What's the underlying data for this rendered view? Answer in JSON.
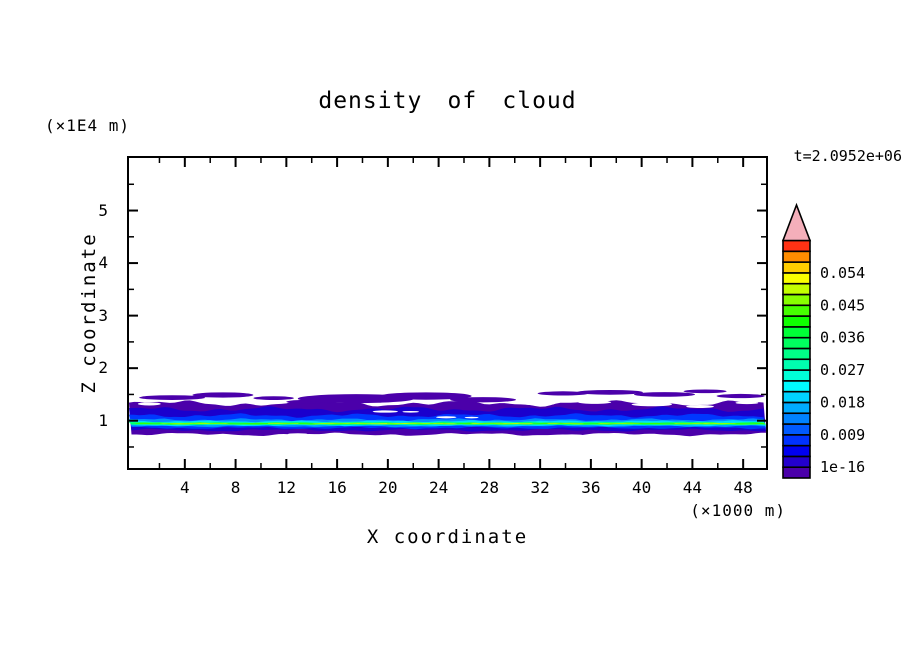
{
  "figure": {
    "title": "density of cloud",
    "time_label": "t=2.0952e+06",
    "x_axis_label": "X coordinate",
    "x_axis_unit": "(×1000 m)",
    "z_axis_label": "Z coordinate",
    "z_axis_unit": "(×1E4 m)"
  },
  "chart_data": {
    "type": "heatmap",
    "title": "density of cloud",
    "xlabel": "X coordinate (×1000 m)",
    "ylabel": "Z coordinate (×1E4 m)",
    "time_annotation": "t=2.0952e+06",
    "x_range": [
      -0.4,
      49.8
    ],
    "z_range": [
      0.1,
      6.0
    ],
    "x_major_ticks": [
      4,
      8,
      12,
      16,
      20,
      24,
      28,
      32,
      36,
      40,
      44,
      48
    ],
    "x_minor_ticks": [
      2,
      6,
      10,
      14,
      18,
      22,
      26,
      30,
      34,
      38,
      42,
      46
    ],
    "z_major_ticks": [
      1,
      2,
      3,
      4,
      5
    ],
    "z_minor_ticks": [
      0.5,
      1.5,
      2.5,
      3.5,
      4.5,
      5.5
    ],
    "grid": false,
    "legend_position": "right-colorbar",
    "colorbar": {
      "labels": [
        "1e-16",
        "0.009",
        "0.018",
        "0.027",
        "0.036",
        "0.045",
        "0.054"
      ],
      "label_boundary_index": [
        1,
        4,
        7,
        10,
        13,
        16,
        19
      ],
      "contour_interval": 0.003,
      "overflow_arrow_color": "#f4afba",
      "cell_colors_bottom_to_top": [
        "#4b00aa",
        "#2300cd",
        "#0000f0",
        "#0032ff",
        "#005aff",
        "#0082ff",
        "#00aaff",
        "#00d2ff",
        "#00faff",
        "#00ffd7",
        "#00ffaf",
        "#00ff87",
        "#00ff5f",
        "#00ff37",
        "#0fff00",
        "#46ff00",
        "#87ff00",
        "#c3ff00",
        "#faff00",
        "#ffcd00",
        "#ff8c00",
        "#ff3214"
      ]
    },
    "field_description": "Thin horizontal cloud layer spanning the full x range, centered near z≈1 (×1E4 m). Bright green/yellow density core (≈0.02–0.05) near z≈0.95 surrounded by cyan, blue and navy shells, with patchy dark-purple low-density margins (≈1e-16–0.003) from z≈0.7 up to detached streaks near z≈1.5–1.6.",
    "band": {
      "blob_color": "#4b00aa",
      "layers": [
        {
          "color": "#4b00aa",
          "z_top": 1.33,
          "z_bot": 0.74,
          "amp_top": 0.07,
          "amp_bot": 0.035,
          "freq": 0.55,
          "phase": 0.0,
          "segments": [
            [
              -0.4,
              49.8
            ]
          ]
        },
        {
          "color": "#1a00cd",
          "z_top": 1.22,
          "z_bot": 0.82,
          "amp_top": 0.06,
          "amp_bot": 0.03,
          "freq": 0.6,
          "phase": 1.3,
          "segments": [
            [
              -0.4,
              49.8
            ]
          ]
        },
        {
          "color": "#0037ff",
          "z_top": 1.1,
          "z_bot": 0.862,
          "amp_top": 0.045,
          "amp_bot": 0.025,
          "freq": 0.7,
          "phase": 2.1,
          "segments": [
            [
              -0.4,
              49.8
            ]
          ]
        },
        {
          "color": "#0091ff",
          "z_top": 1.02,
          "z_bot": 0.893,
          "amp_top": 0.03,
          "amp_bot": 0.02,
          "freq": 0.8,
          "phase": 0.7,
          "segments": [
            [
              -0.4,
              49.8
            ]
          ]
        },
        {
          "color": "#00dcff",
          "z_top": 0.99,
          "z_bot": 0.91,
          "amp_top": 0.022,
          "amp_bot": 0.015,
          "freq": 0.9,
          "phase": 2.8,
          "segments": [
            [
              -0.4,
              49.8
            ]
          ]
        },
        {
          "color": "#00ffc3",
          "z_top": 0.972,
          "z_bot": 0.922,
          "amp_top": 0.016,
          "amp_bot": 0.012,
          "freq": 1.0,
          "phase": 1.9,
          "segments": [
            [
              -0.4,
              49.8
            ]
          ]
        },
        {
          "color": "#00ff69",
          "z_top": 0.963,
          "z_bot": 0.928,
          "amp_top": 0.013,
          "amp_bot": 0.01,
          "freq": 1.05,
          "phase": 0.4,
          "segments": [
            [
              -0.4,
              49.8
            ]
          ]
        },
        {
          "color": "#37ff00",
          "z_top": 0.957,
          "z_bot": 0.933,
          "amp_top": 0.011,
          "amp_bot": 0.009,
          "freq": 1.1,
          "phase": 2.2,
          "segments": [
            [
              0,
              49.8
            ]
          ]
        },
        {
          "color": "#aaff00",
          "z_top": 0.951,
          "z_bot": 0.938,
          "amp_top": 0.008,
          "amp_bot": 0.007,
          "freq": 1.2,
          "phase": 1.0,
          "segments": [
            [
              2,
              7.5
            ],
            [
              10.5,
              13
            ],
            [
              14,
              25.5
            ],
            [
              26.5,
              31.5
            ],
            [
              32.5,
              35.5
            ],
            [
              36.5,
              40
            ],
            [
              42.5,
              47.5
            ]
          ]
        },
        {
          "color": "#f5ff00",
          "z_top": 0.948,
          "z_bot": 0.941,
          "amp_top": 0.005,
          "amp_bot": 0.004,
          "freq": 1.3,
          "phase": 0.5,
          "segments": [
            [
              17.5,
              20
            ],
            [
              21,
              22.5
            ],
            [
              23.5,
              24.5
            ],
            [
              29,
              30.5
            ],
            [
              44.8,
              46.2
            ]
          ]
        }
      ],
      "purple_blobs": [
        [
          3,
          1.44,
          2.6,
          0.045
        ],
        [
          7,
          1.49,
          2.4,
          0.05
        ],
        [
          11,
          1.43,
          1.6,
          0.035
        ],
        [
          14,
          1.36,
          2.0,
          0.04
        ],
        [
          17.5,
          1.42,
          4.6,
          0.085
        ],
        [
          23,
          1.47,
          3.6,
          0.07
        ],
        [
          27.5,
          1.4,
          2.6,
          0.05
        ],
        [
          33.8,
          1.52,
          2.0,
          0.04
        ],
        [
          37.5,
          1.54,
          2.6,
          0.045
        ],
        [
          41.8,
          1.5,
          2.4,
          0.045
        ],
        [
          45,
          1.56,
          1.7,
          0.035
        ],
        [
          47.8,
          1.47,
          1.9,
          0.04
        ]
      ],
      "white_gaps": [
        [
          19.8,
          1.175,
          1.0,
          0.022
        ],
        [
          21.8,
          1.17,
          0.65,
          0.016
        ],
        [
          24.6,
          1.065,
          0.8,
          0.02
        ],
        [
          26.6,
          1.06,
          0.55,
          0.016
        ],
        [
          12.9,
          0.74,
          0.8,
          0.022
        ],
        [
          34.5,
          0.72,
          0.9,
          0.02
        ],
        [
          31.8,
          1.33,
          1.4,
          0.035
        ],
        [
          36.3,
          1.35,
          1.3,
          0.03
        ],
        [
          40.8,
          1.31,
          1.6,
          0.035
        ],
        [
          44.6,
          1.27,
          1.1,
          0.028
        ],
        [
          48.3,
          1.34,
          0.9,
          0.025
        ],
        [
          1.2,
          1.32,
          0.9,
          0.03
        ]
      ]
    }
  }
}
